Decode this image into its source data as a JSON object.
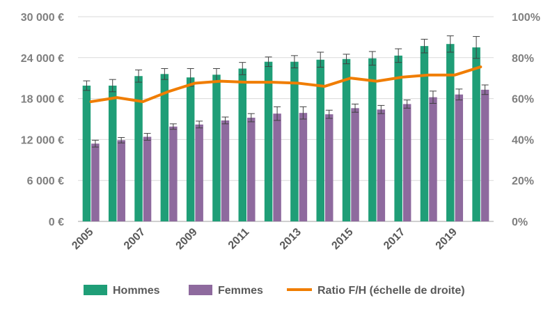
{
  "chart_data": {
    "type": "bar",
    "categories": [
      "2005",
      "2006",
      "2007",
      "2008",
      "2009",
      "2010",
      "2011",
      "2012",
      "2013",
      "2014",
      "2015",
      "2016",
      "2017",
      "2018",
      "2019",
      "2020"
    ],
    "x_tick_labels": [
      "2005",
      "2007",
      "2009",
      "2011",
      "2013",
      "2015",
      "2017",
      "2019"
    ],
    "series": [
      {
        "name": "Hommes",
        "type": "bar",
        "axis": "left",
        "color": "#1f9e77",
        "values": [
          19900,
          19900,
          21300,
          21600,
          21100,
          21500,
          22400,
          23400,
          23400,
          23700,
          23800,
          23900,
          24300,
          25700,
          26000,
          25500
        ],
        "error": [
          700,
          900,
          900,
          800,
          1300,
          900,
          900,
          700,
          900,
          1100,
          700,
          1000,
          1000,
          1000,
          1200,
          1600
        ]
      },
      {
        "name": "Femmes",
        "type": "bar",
        "axis": "left",
        "color": "#8e6a9e",
        "values": [
          11400,
          11900,
          12400,
          13900,
          14200,
          14800,
          15200,
          15800,
          15900,
          15700,
          16600,
          16400,
          17200,
          18200,
          18600,
          19300
        ],
        "error": [
          500,
          400,
          500,
          400,
          500,
          500,
          600,
          1000,
          900,
          600,
          600,
          600,
          600,
          900,
          800,
          700
        ]
      },
      {
        "name": "Ratio F/H (échelle de droite)",
        "type": "line",
        "axis": "right",
        "color": "#f07d00",
        "values": [
          58.5,
          60.5,
          58.5,
          63.5,
          67.5,
          68.5,
          68,
          68,
          67.5,
          66,
          70,
          68.5,
          70.5,
          71.5,
          71.5,
          75.5
        ]
      }
    ],
    "y_left": {
      "ylim": [
        0,
        30000
      ],
      "ticks": [
        "0 €",
        "6 000 €",
        "12 000 €",
        "18 000 €",
        "24 000 €",
        "30 000 €"
      ]
    },
    "y_right": {
      "ylim": [
        0,
        100
      ],
      "ticks": [
        "0%",
        "20%",
        "40%",
        "60%",
        "80%",
        "100%"
      ]
    },
    "grid": true,
    "legend": "bottom",
    "title": "",
    "xlabel": "",
    "ylabel": ""
  }
}
